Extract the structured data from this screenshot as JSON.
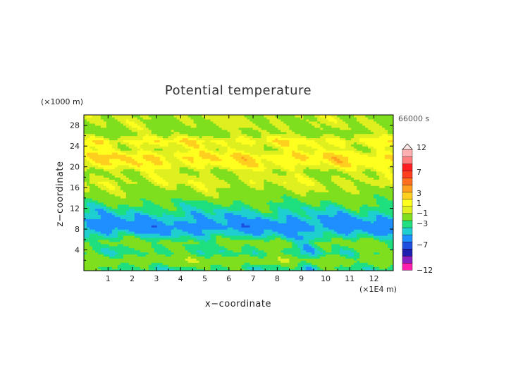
{
  "chart_data": {
    "type": "heatmap",
    "title": "Potential temperature",
    "xlabel": "x−coordinate",
    "ylabel": "z−coordinate",
    "x_unit": "(×1E4 m)",
    "y_unit": "(×1000 m)",
    "time_label": "66000 s",
    "xlim": [
      0,
      12.8
    ],
    "ylim": [
      0,
      30
    ],
    "x_ticks": [
      "1",
      "2",
      "3",
      "4",
      "5",
      "6",
      "7",
      "8",
      "9",
      "10",
      "11",
      "12"
    ],
    "y_ticks": [
      "4",
      "8",
      "12",
      "16",
      "20",
      "24",
      "28"
    ],
    "colorbar": {
      "bins": [
        {
          "color": "#ff1faf"
        },
        {
          "color": "#8a1fbf"
        },
        {
          "color": "#1f1faf"
        },
        {
          "color": "#1f4fdf"
        },
        {
          "color": "#1f8fff"
        },
        {
          "color": "#1fcfcf"
        },
        {
          "color": "#1fdf7f"
        },
        {
          "color": "#7fdf1f"
        },
        {
          "color": "#dfef1f"
        },
        {
          "color": "#ffff1f"
        },
        {
          "color": "#ffcf1f"
        },
        {
          "color": "#ff9f1f"
        },
        {
          "color": "#ff6f1f"
        },
        {
          "color": "#ff3f1f"
        },
        {
          "color": "#ff1f1f"
        },
        {
          "color": "#ff7f7f"
        },
        {
          "color": "#ffafaf"
        }
      ],
      "labels": [
        "12",
        "7",
        "3",
        "1",
        "−1",
        "−3",
        "−7",
        "−12"
      ]
    },
    "bands_description_values": [
      {
        "z": 0.5,
        "value": -1.5
      },
      {
        "z": 2.0,
        "value": 0.5
      },
      {
        "z": 3.5,
        "value": -1.5
      },
      {
        "z": 5.5,
        "value": -0.5
      },
      {
        "z": 7.0,
        "value": -2.5
      },
      {
        "z": 8.5,
        "value": -4.0
      },
      {
        "z": 10.0,
        "value": -3.0
      },
      {
        "z": 11.5,
        "value": -2.0
      },
      {
        "z": 13.0,
        "value": -1.0
      },
      {
        "z": 15.0,
        "value": 0.5
      },
      {
        "z": 17.0,
        "value": 1.5
      },
      {
        "z": 19.0,
        "value": 1.0
      },
      {
        "z": 20.5,
        "value": 2.5
      },
      {
        "z": 22.0,
        "value": 3.0
      },
      {
        "z": 23.5,
        "value": 1.5
      },
      {
        "z": 25.0,
        "value": 2.5
      },
      {
        "z": 26.5,
        "value": 0.5
      },
      {
        "z": 28.5,
        "value": 1.0
      }
    ]
  }
}
